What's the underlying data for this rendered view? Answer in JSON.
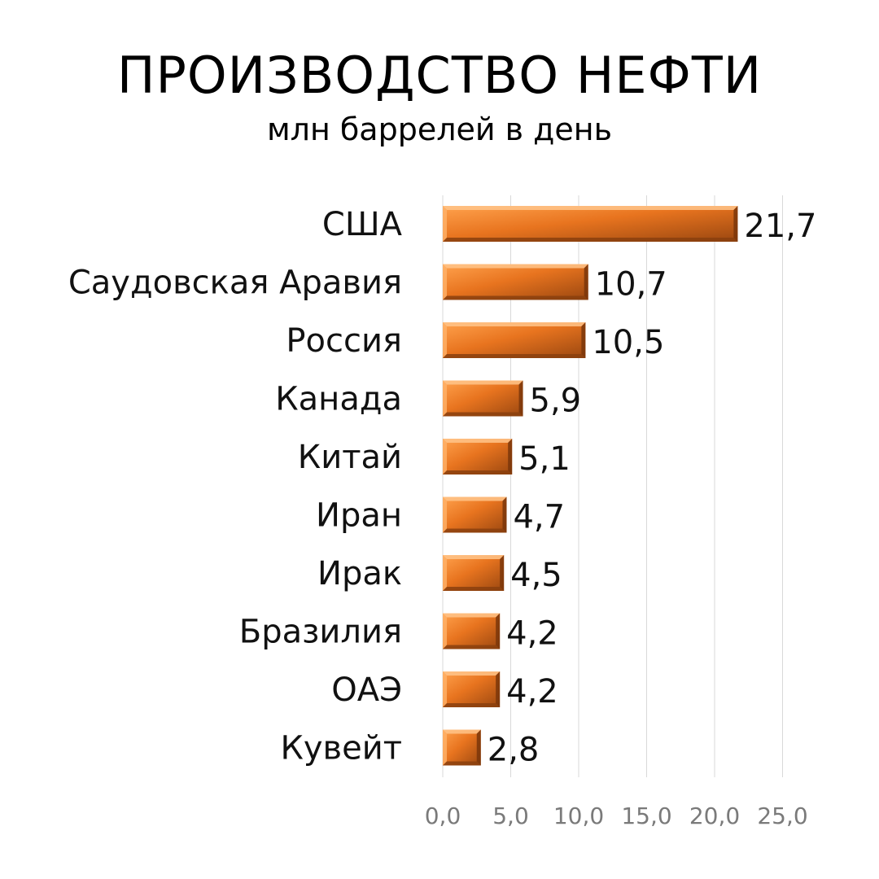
{
  "title": "ПРОИЗВОДСТВО НЕФТИ",
  "subtitle": "млн баррелей в день",
  "colors": {
    "bar_light": "#ffa24d",
    "bar_mid": "#e8741f",
    "bar_dark": "#9a4710",
    "gridline": "#d9d9d9",
    "tick_text": "#7a7a7a"
  },
  "chart_data": {
    "type": "bar",
    "orientation": "horizontal",
    "title": "ПРОИЗВОДСТВО НЕФТИ",
    "subtitle": "млн баррелей в день",
    "categories": [
      "США",
      "Саудовская Аравия",
      "Россия",
      "Канада",
      "Китай",
      "Иран",
      "Ирак",
      "Бразилия",
      "ОАЭ",
      "Кувейт"
    ],
    "values": [
      21.7,
      10.7,
      10.5,
      5.9,
      5.1,
      4.7,
      4.5,
      4.2,
      4.2,
      2.8
    ],
    "value_labels": [
      "21,7",
      "10,7",
      "10,5",
      "5,9",
      "5,1",
      "4,7",
      "4,5",
      "4,2",
      "4,2",
      "2,8"
    ],
    "xlim": [
      0,
      25
    ],
    "x_ticks": [
      0,
      5,
      10,
      15,
      20,
      25
    ],
    "x_tick_labels": [
      "0,0",
      "5,0",
      "10,0",
      "15,0",
      "20,0",
      "25,0"
    ],
    "xlabel": "",
    "ylabel": "",
    "grid": "vertical",
    "legend": "none"
  }
}
